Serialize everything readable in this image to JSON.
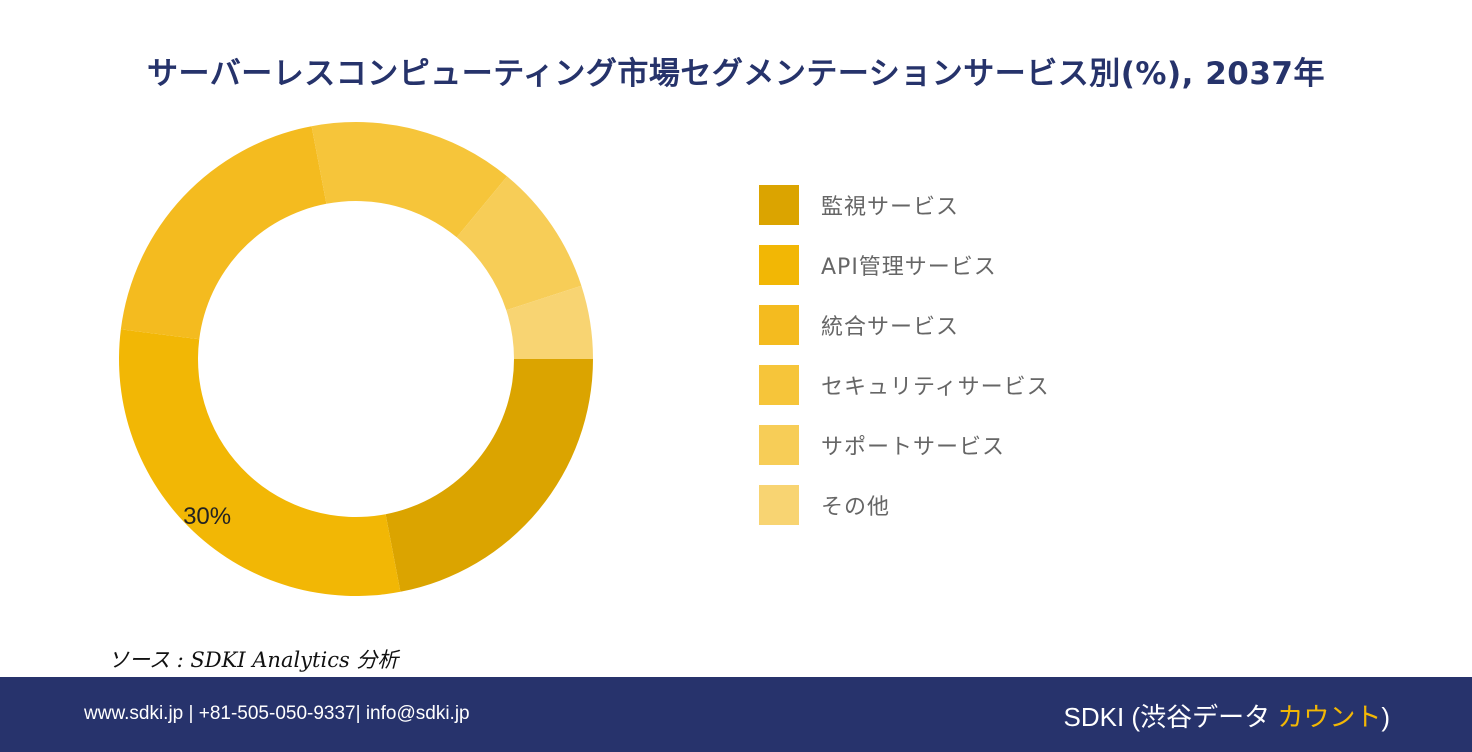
{
  "chart_data": {
    "type": "pie",
    "title": "サーバーレスコンピューティング市場セグメンテーションサービス別(%), 2037年",
    "categories": [
      "監視サービス",
      "API管理サービス",
      "統合サービス",
      "セキュリティサービス",
      "サポートサービス",
      "その他"
    ],
    "values": [
      22,
      30,
      20,
      14,
      9,
      5
    ],
    "data_labels": [
      "",
      "30%",
      "",
      "",
      "",
      ""
    ],
    "colors": [
      "#dba400",
      "#f2b705",
      "#f4bb1f",
      "#f6c53a",
      "#f7cd57",
      "#f8d472"
    ],
    "donut": true,
    "legend_position": "right"
  },
  "source_text": "ソース : SDKI Analytics 分析",
  "footer": {
    "contact": "www.sdki.jp | +81-505-050-9337| info@sdki.jp",
    "brand_main": "SDKI (渋谷データ ",
    "brand_accent": "カウント",
    "brand_close": ")"
  }
}
